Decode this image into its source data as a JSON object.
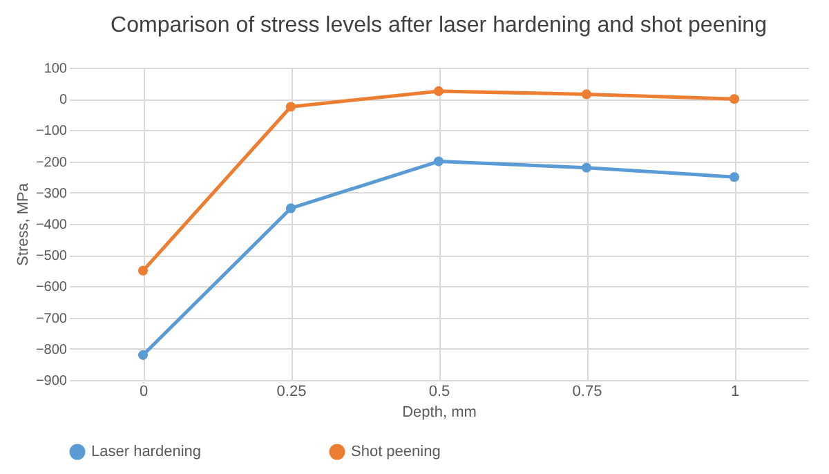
{
  "chart_data": {
    "type": "line",
    "title": "Comparison of stress levels after laser hardening and shot peening",
    "xlabel": "Depth, mm",
    "ylabel": "Stress, MPa",
    "categories": [
      "0",
      "0.25",
      "0.5",
      "0.75",
      "1"
    ],
    "series": [
      {
        "name": "Laser hardening",
        "color": "#5b9bd5",
        "values": [
          -820,
          -350,
          -200,
          -220,
          -250
        ]
      },
      {
        "name": "Shot peening",
        "color": "#ed7d31",
        "values": [
          -550,
          -25,
          25,
          15,
          0
        ]
      }
    ],
    "ylim": [
      -900,
      100
    ],
    "yticks": [
      -900,
      -800,
      -700,
      -600,
      -500,
      -400,
      -300,
      -200,
      -100,
      0,
      100
    ],
    "grid": true,
    "legend": "bottom",
    "marker": "circle",
    "line_style": "solid"
  }
}
